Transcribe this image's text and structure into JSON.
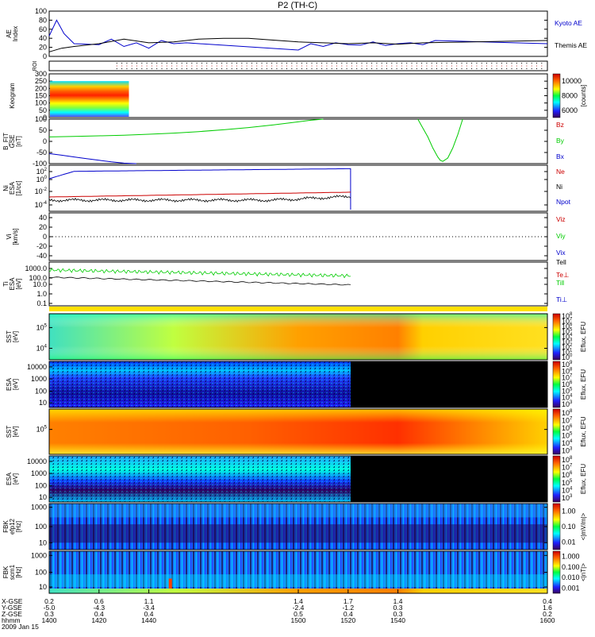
{
  "title": "P2 (TH-C)",
  "chart_data": [
    {
      "type": "line",
      "ylabel": "AE Index",
      "ylim": [
        0,
        100
      ],
      "ticks": [
        "0",
        "20",
        "40",
        "60",
        "80",
        "100"
      ],
      "series": [
        {
          "name": "Kyoto AE",
          "color": "#0000cc",
          "x": [
            1400,
            1403,
            1406,
            1410,
            1415,
            1420,
            1425,
            1430,
            1435,
            1440,
            1445,
            1450,
            1455,
            1500,
            1505,
            1510,
            1515,
            1520,
            1525,
            1530,
            1535,
            1540,
            1545,
            1550,
            1555,
            1600
          ],
          "y": [
            45,
            80,
            50,
            28,
            27,
            26,
            38,
            22,
            30,
            18,
            35,
            28,
            30,
            14,
            28,
            22,
            30,
            26,
            25,
            32,
            24,
            28,
            30,
            26,
            35,
            28
          ]
        },
        {
          "name": "Themis AE",
          "color": "#000000",
          "x": [
            1400,
            1405,
            1410,
            1420,
            1430,
            1440,
            1450,
            1460,
            1470,
            1480,
            1490,
            1500,
            1510,
            1520,
            1530,
            1540,
            1550,
            1600
          ],
          "y": [
            10,
            18,
            22,
            28,
            38,
            30,
            32,
            38,
            40,
            40,
            36,
            32,
            30,
            28,
            30,
            27,
            30,
            35
          ]
        }
      ]
    },
    {
      "type": "table",
      "ylabel": "ROI"
    },
    {
      "type": "heatmap",
      "ylabel": "Keogram",
      "ylim": [
        0,
        300
      ],
      "ticks": [
        "0",
        "50",
        "100",
        "150",
        "200",
        "250",
        "300"
      ],
      "colorbar": {
        "label": "[counts]",
        "ticks": [
          "6000",
          "8000",
          "10000"
        ]
      }
    },
    {
      "type": "line",
      "ylabel": "B_FIT GSE [nT]",
      "ylim": [
        -100,
        100
      ],
      "ticks": [
        "-100",
        "-50",
        "0",
        "50",
        "100"
      ],
      "series": [
        {
          "name": "Bz",
          "color": "#cc0000",
          "x": [],
          "y": []
        },
        {
          "name": "By",
          "color": "#00cc00",
          "x": [
            1400,
            1410,
            1420,
            1430,
            1440,
            1450,
            1460,
            1470,
            1480,
            1490,
            1500,
            1505,
            1510
          ],
          "y": [
            20,
            22,
            25,
            28,
            32,
            37,
            44,
            52,
            62,
            74,
            88,
            95,
            100
          ]
        },
        {
          "name": "Bx",
          "color": "#0000cc",
          "x": [
            1400,
            1405,
            1410,
            1415,
            1420,
            1425,
            1430,
            1435
          ],
          "y": [
            -55,
            -62,
            -70,
            -78,
            -85,
            -92,
            -98,
            -100
          ]
        }
      ],
      "extra": {
        "x": [
          1548,
          1550,
          1552,
          1554,
          1556,
          1557,
          1558,
          1560,
          1562,
          1564,
          1566
        ],
        "y": [
          100,
          60,
          20,
          -30,
          -70,
          -85,
          -90,
          -75,
          -30,
          30,
          100
        ]
      }
    },
    {
      "type": "line",
      "ylabel": "Ni ESA [1/cc]",
      "ticks": [
        "10^-4",
        "10^-2",
        "10^0",
        "10^2"
      ],
      "series": [
        {
          "name": "Ne",
          "color": "#cc0000"
        },
        {
          "name": "Ni",
          "color": "#000000"
        },
        {
          "name": "Npot",
          "color": "#0000cc"
        }
      ]
    },
    {
      "type": "line",
      "ylabel": "Vi [km/s]",
      "ylim": [
        -50,
        50
      ],
      "ticks": [
        "-40",
        "-20",
        "0",
        "20",
        "40"
      ],
      "series": [
        {
          "name": "Viz",
          "color": "#cc0000"
        },
        {
          "name": "Viy",
          "color": "#00cc00"
        },
        {
          "name": "Vix",
          "color": "#0000cc"
        }
      ]
    },
    {
      "type": "line",
      "ylabel": "Ti ESA [eV]",
      "ticks": [
        "0.1",
        "1.0",
        "10.0",
        "100.0",
        "1000.0"
      ],
      "series": [
        {
          "name": "Tell",
          "color": "#000000"
        },
        {
          "name": "Te⊥",
          "color": "#cc0000"
        },
        {
          "name": "Ti‖",
          "color": "#00cc00"
        },
        {
          "name": "Ti⊥",
          "color": "#0000cc"
        }
      ]
    },
    {
      "type": "heatmap",
      "ylabel": "SST [eV]",
      "ticks": [
        "10^4",
        "10^5"
      ],
      "colorbar": {
        "label": "Eflux, EFU",
        "ticks": [
          "10^0",
          "10^1",
          "10^2",
          "10^3",
          "10^4",
          "10^5",
          "10^6",
          "10^7",
          "10^8"
        ]
      }
    },
    {
      "type": "heatmap",
      "ylabel": "ESA [eV]",
      "ticks": [
        "10",
        "100",
        "1000",
        "10000"
      ],
      "colorbar": {
        "label": "Eflux, EFU",
        "ticks": [
          "10^3",
          "10^4",
          "10^5",
          "10^6",
          "10^7",
          "10^8",
          "10^9"
        ]
      }
    },
    {
      "type": "heatmap",
      "ylabel": "SST [eV]",
      "ticks": [
        "10^5"
      ],
      "colorbar": {
        "label": "Eflux, EFU",
        "ticks": [
          "10^3",
          "10^4",
          "10^5",
          "10^6",
          "10^7",
          "10^8"
        ]
      }
    },
    {
      "type": "heatmap",
      "ylabel": "ESA [eV]",
      "ticks": [
        "10",
        "100",
        "1000",
        "10000"
      ],
      "colorbar": {
        "label": "Eflux, EFU",
        "ticks": [
          "10^3",
          "10^4",
          "10^5",
          "10^6",
          "10^7",
          "10^8"
        ]
      }
    },
    {
      "type": "heatmap",
      "ylabel": "FBK efp12 [Hz]",
      "ticks": [
        "10",
        "100",
        "1000"
      ],
      "colorbar": {
        "label": "<|mV/m|>",
        "ticks": [
          "0.01",
          "0.10",
          "1.00"
        ]
      }
    },
    {
      "type": "heatmap",
      "ylabel": "FBK scm1 [Hz]",
      "ticks": [
        "10",
        "100",
        "1000"
      ],
      "colorbar": {
        "label": "<|nT|>",
        "ticks": [
          "0.001",
          "0.010",
          "0.100",
          "1.000"
        ]
      }
    }
  ],
  "xaxis": {
    "rows": [
      {
        "label": "X-GSE",
        "values": [
          "0.2",
          "0.6",
          "1.1",
          "1.4",
          "1.7",
          "1.4",
          "0.4"
        ]
      },
      {
        "label": "Y-GSE",
        "values": [
          "-5.0",
          "-4.3",
          "-3.4",
          "-2.4",
          "-1.2",
          "0.3",
          "1.6"
        ]
      },
      {
        "label": "Z-GSE",
        "values": [
          "0.3",
          "0.4",
          "0.4",
          "0.5",
          "0.4",
          "0.3",
          "0.2"
        ]
      },
      {
        "label": "hhmm",
        "values": [
          "1400",
          "1420",
          "1440",
          "1500",
          "1520",
          "1540",
          "1600"
        ]
      }
    ],
    "date": "2009 Jan 15"
  }
}
